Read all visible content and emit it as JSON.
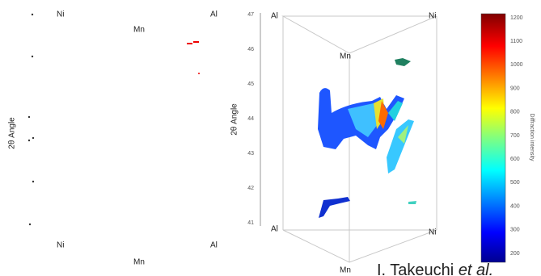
{
  "left_panel": {
    "y_label": "2θ Angle",
    "top_labels": [
      "Ni",
      "Mn",
      "Al"
    ],
    "bottom_labels": [
      "Ni",
      "Al",
      "Mn"
    ]
  },
  "right_panel": {
    "y_label": "2θ Angle",
    "y_ticks": [
      47,
      46,
      45,
      44,
      43,
      42,
      41
    ],
    "top_labels": [
      "Al",
      "Mn",
      "Ni"
    ],
    "bottom_labels": [
      "Al",
      "Ni",
      "Mn"
    ]
  },
  "colorbar": {
    "label": "Diffraction intensity",
    "ticks": [
      1200,
      1100,
      1000,
      900,
      800,
      700,
      600,
      500,
      400,
      300,
      200
    ]
  },
  "credit": {
    "author": "I. Takeuchi",
    "etal": "et al."
  }
}
